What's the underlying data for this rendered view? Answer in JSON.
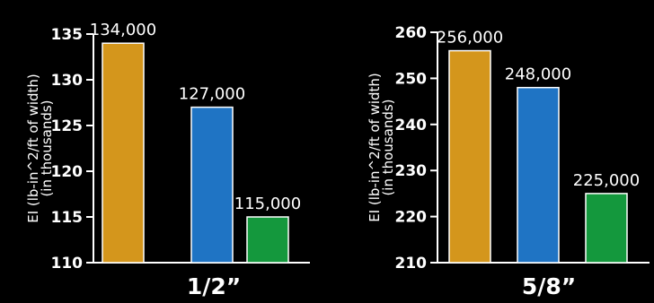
{
  "chart_data": [
    {
      "type": "bar",
      "categories": [
        "",
        "",
        ""
      ],
      "values": [
        134000,
        127000,
        115000
      ],
      "data_labels": [
        "134,000",
        "127,000",
        "115,000"
      ],
      "bar_colors": [
        "#d4961c",
        "#1f74c4",
        "#14983d"
      ],
      "title": "1/2”",
      "xlabel": "",
      "ylabel": "EI (lb-in^2/ft of width)",
      "ylabel2": "(in thousands)",
      "ylim": [
        110,
        135
      ],
      "yticks": [
        "110",
        "115",
        "120",
        "125",
        "130",
        "135"
      ],
      "grid": false
    },
    {
      "type": "bar",
      "categories": [
        "",
        "",
        ""
      ],
      "values": [
        256000,
        248000,
        225000
      ],
      "data_labels": [
        "256,000",
        "248,000",
        "225,000"
      ],
      "bar_colors": [
        "#d4961c",
        "#1f74c4",
        "#14983d"
      ],
      "title": "5/8”",
      "xlabel": "",
      "ylabel": "EI (lb-in^2/ft of width)",
      "ylabel2": "(in thousands)",
      "ylim": [
        210,
        260
      ],
      "yticks": [
        "210",
        "220",
        "230",
        "240",
        "250",
        "260"
      ],
      "grid": false
    }
  ],
  "colors": {
    "background": "#000000",
    "text": "#ffffff",
    "axis": "#ffffff"
  }
}
